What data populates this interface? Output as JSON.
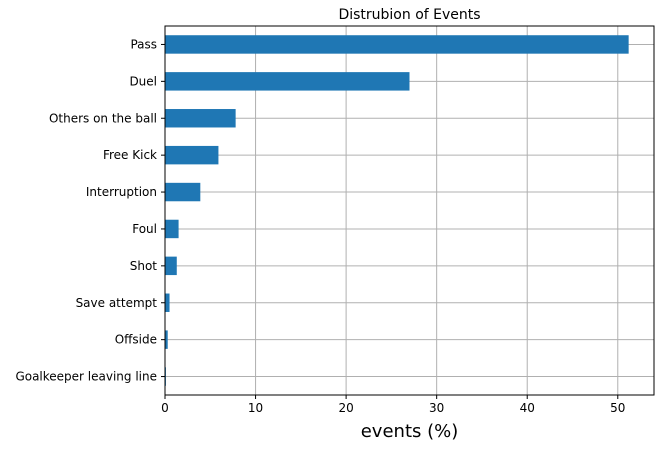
{
  "chart_data": {
    "type": "bar",
    "orientation": "horizontal",
    "title": "Distrubion of Events",
    "xlabel": "events (%)",
    "ylabel": "",
    "categories": [
      "Pass",
      "Duel",
      "Others on the ball",
      "Free Kick",
      "Interruption",
      "Foul",
      "Shot",
      "Save attempt",
      "Offside",
      "Goalkeeper leaving line"
    ],
    "values": [
      51.2,
      27.0,
      7.8,
      5.9,
      3.9,
      1.5,
      1.3,
      0.5,
      0.3,
      0.1
    ],
    "xlim": [
      0,
      54
    ],
    "xticks": [
      0,
      10,
      20,
      30,
      40,
      50
    ],
    "grid": true,
    "bar_color": "#1f77b4",
    "grid_color": "#b0b0b0"
  }
}
